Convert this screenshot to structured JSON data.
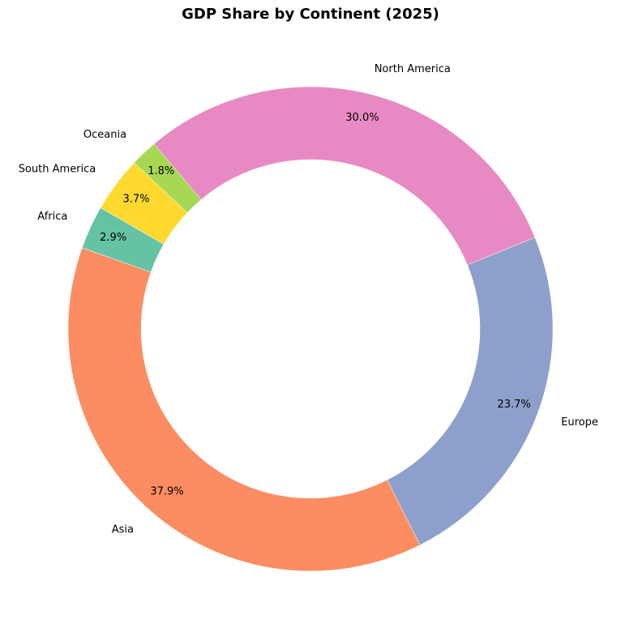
{
  "chart_data": {
    "type": "pie",
    "title": "GDP Share by Continent (2025)",
    "donut": true,
    "start_angle_deg": 150,
    "direction": "counterclockwise",
    "legend": "none",
    "slices": [
      {
        "label": "Africa",
        "value": 2.9,
        "pct_text": "2.9%",
        "color": "#66c2a5"
      },
      {
        "label": "Asia",
        "value": 37.9,
        "pct_text": "37.9%",
        "color": "#fc8d62"
      },
      {
        "label": "Europe",
        "value": 23.7,
        "pct_text": "23.7%",
        "color": "#8da0cb"
      },
      {
        "label": "North America",
        "value": 30.0,
        "pct_text": "30.0%",
        "color": "#e78ac3"
      },
      {
        "label": "Oceania",
        "value": 1.8,
        "pct_text": "1.8%",
        "color": "#a6d854"
      },
      {
        "label": "South America",
        "value": 3.7,
        "pct_text": "3.7%",
        "color": "#ffd92f"
      }
    ]
  }
}
